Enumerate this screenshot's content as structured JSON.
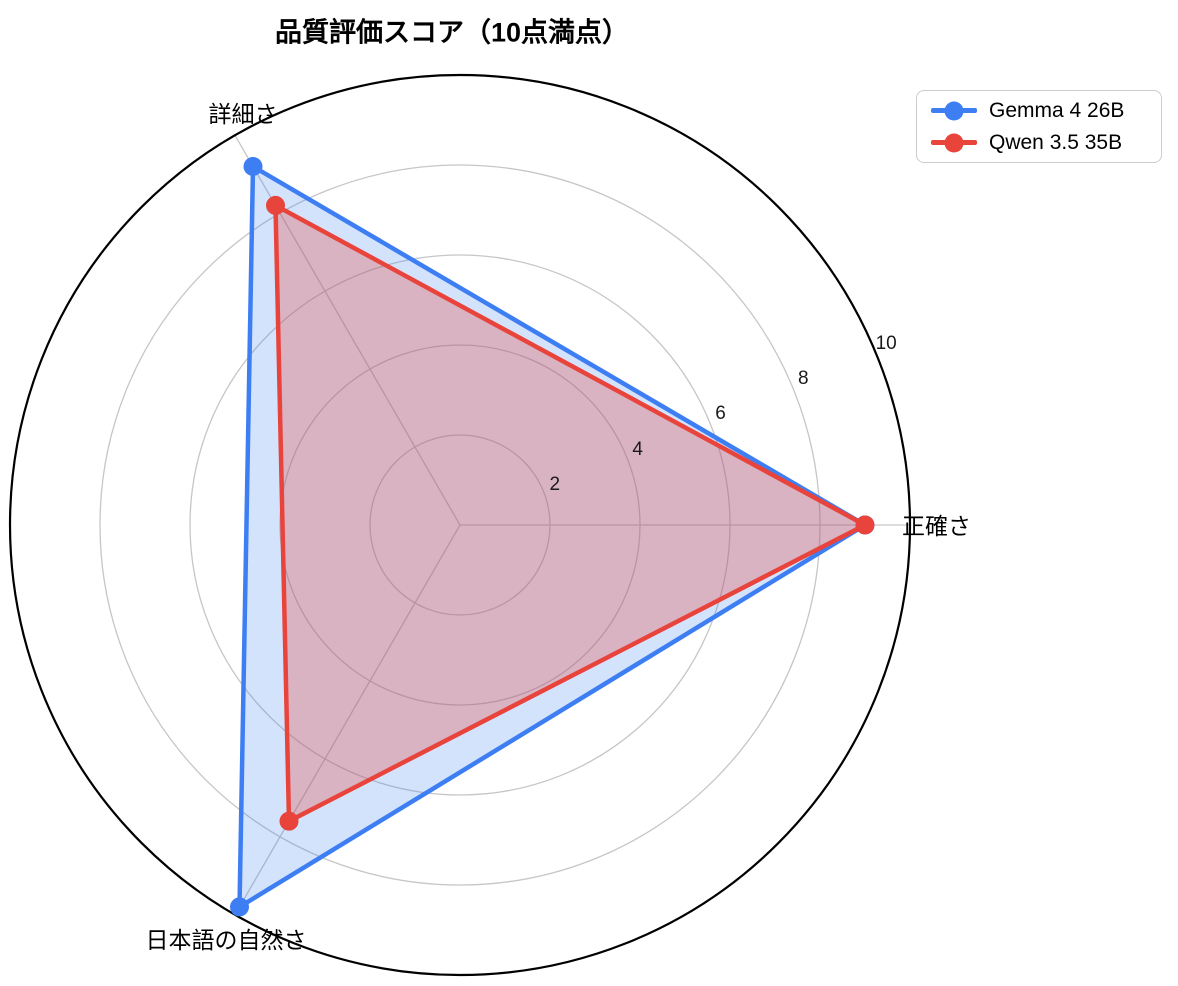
{
  "title": "品質評価スコア（10点満点）",
  "legend": {
    "items": [
      {
        "label": "Gemma 4 26B",
        "color": "#3D7EF3"
      },
      {
        "label": "Qwen 3.5 35B",
        "color": "#E8443C"
      }
    ]
  },
  "chart_data": {
    "type": "radar",
    "title": "品質評価スコア（10点満点）",
    "categories": [
      "正確さ",
      "詳細さ",
      "日本語の自然さ"
    ],
    "angles_deg": [
      0,
      120,
      240
    ],
    "series": [
      {
        "name": "Gemma 4 26B",
        "values": [
          9.0,
          9.2,
          9.8
        ],
        "color": "#3D7EF3",
        "fill": "rgba(61,126,243,0.22)"
      },
      {
        "name": "Qwen 3.5 35B",
        "values": [
          9.0,
          8.2,
          7.6
        ],
        "color": "#E8443C",
        "fill": "rgba(232,68,60,0.30)"
      }
    ],
    "r_ticks": [
      2,
      4,
      6,
      8,
      10
    ],
    "r_max": 10,
    "tick_angle_deg": 23,
    "grid_color": "#c6c6c6",
    "outline_color": "#000000",
    "legend_position": "top-right",
    "grid": true
  }
}
